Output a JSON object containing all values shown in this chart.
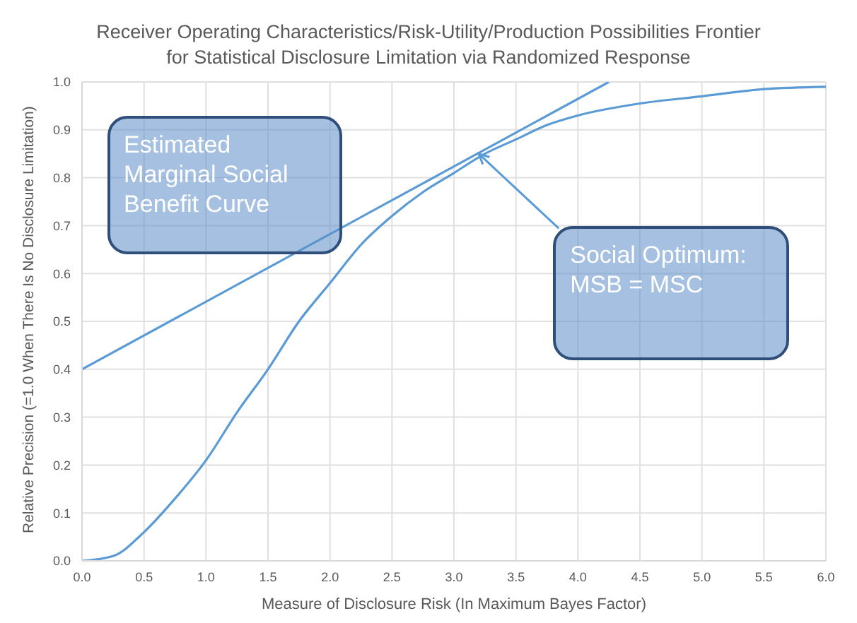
{
  "chart_data": {
    "type": "line",
    "title": "Receiver Operating Characteristics/Risk-Utility/Production Possibilities Frontier",
    "subtitle": "for Statistical Disclosure Limitation via Randomized Response",
    "xlabel": "Measure of Disclosure Risk (In Maximum Bayes Factor)",
    "ylabel": "Relative Precision (=1.0 When There Is No Disclosure Limitation)",
    "series": [
      {
        "color": "#5b9bd5",
        "x": [
          0,
          0.25,
          0.5,
          0.75,
          1.0,
          1.25,
          1.5,
          1.75,
          2.0,
          2.25,
          2.5,
          2.75,
          3.0,
          3.25,
          3.5,
          3.75,
          4.0,
          4.5,
          5.0,
          5.5,
          6.0
        ],
        "values": [
          0,
          0.01,
          0.06,
          0.13,
          0.21,
          0.31,
          0.4,
          0.5,
          0.58,
          0.66,
          0.72,
          0.77,
          0.81,
          0.85,
          0.88,
          0.91,
          0.93,
          0.955,
          0.97,
          0.985,
          0.99
        ]
      },
      {
        "color": "#5b9bd5",
        "x": [
          0,
          4.25
        ],
        "values": [
          0.4,
          1.0
        ]
      }
    ],
    "xlim": [
      0,
      6
    ],
    "xticks": [
      {
        "value": 0,
        "label": "0.0"
      },
      {
        "value": 0.5,
        "label": "0.5"
      },
      {
        "value": 1,
        "label": "1.0"
      },
      {
        "value": 1.5,
        "label": "1.5"
      },
      {
        "value": 2,
        "label": "2.0"
      },
      {
        "value": 2.5,
        "label": "2.5"
      },
      {
        "value": 3,
        "label": "3.0"
      },
      {
        "value": 3.5,
        "label": "3.5"
      },
      {
        "value": 4,
        "label": "4.0"
      },
      {
        "value": 4.5,
        "label": "4.5"
      },
      {
        "value": 5,
        "label": "5.0"
      },
      {
        "value": 5.5,
        "label": "5.5"
      },
      {
        "value": 6,
        "label": "6.0"
      }
    ],
    "ylim": [
      0,
      1
    ],
    "yticks": [
      {
        "value": 0,
        "label": "0.0"
      },
      {
        "value": 0.1,
        "label": "0.1"
      },
      {
        "value": 0.2,
        "label": "0.2"
      },
      {
        "value": 0.3,
        "label": "0.3"
      },
      {
        "value": 0.4,
        "label": "0.4"
      },
      {
        "value": 0.5,
        "label": "0.5"
      },
      {
        "value": 0.6,
        "label": "0.6"
      },
      {
        "value": 0.7,
        "label": "0.7"
      },
      {
        "value": 0.8,
        "label": "0.8"
      },
      {
        "value": 0.9,
        "label": "0.9"
      },
      {
        "value": 1,
        "label": "1.0"
      }
    ],
    "grid": true,
    "annotations": [
      "Estimated Marginal Social Benefit Curve",
      {
        "text": "Social Optimum: MSB = MSC",
        "x": 3.2,
        "y": 0.85
      }
    ]
  }
}
